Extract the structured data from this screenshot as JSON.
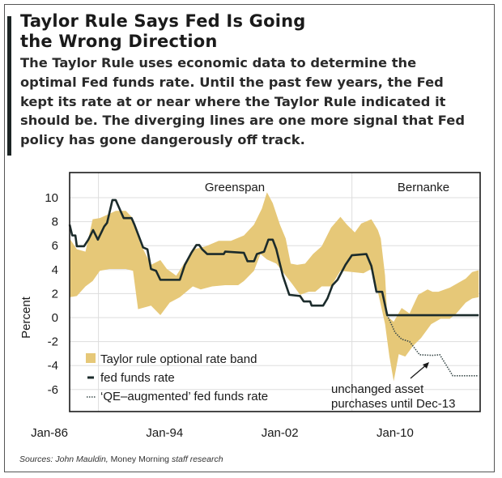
{
  "header": {
    "title_lines": [
      "Taylor Rule Says Fed Is Going",
      "the Wrong Direction"
    ],
    "description_lines": [
      "The Taylor Rule uses economic data to determine the",
      "optimal Fed funds rate. Until the past few years,  the Fed",
      "kept its rate at or near where the Taylor Rule indicated it",
      "should be. The diverging lines are one more signal that Fed",
      "policy has gone dangerously off track."
    ]
  },
  "sources": {
    "prefix": "Sources: John Mauldin,",
    "middle": " Money Morning ",
    "suffix": "staff research"
  },
  "chart_data": {
    "type": "area",
    "title": "",
    "xlabel": "",
    "ylabel": "Percent",
    "ylim": [
      -6.5,
      11.8
    ],
    "xlim": [
      1986,
      2014.5
    ],
    "yticks": [
      10,
      8,
      6,
      4,
      2,
      0,
      -2,
      -4,
      -6
    ],
    "xticks": [
      {
        "label": "Jan-86",
        "year": 1986
      },
      {
        "label": "Jan-94",
        "year": 1994
      },
      {
        "label": "Jan-02",
        "year": 2002
      },
      {
        "label": "Jan-10",
        "year": 2010
      }
    ],
    "grid": true,
    "era_labels": [
      {
        "label": "Greenspan"
      },
      {
        "label": "Bernanke"
      }
    ],
    "annotation": {
      "lines": [
        "unchanged asset",
        "purchases until Dec-13"
      ]
    },
    "legend_position": "bottom-left",
    "colors": {
      "band": "#e6c878",
      "fed": "#1b2b2b",
      "qe": "#3a4a4a",
      "grid": "#dddddd"
    },
    "series": [
      {
        "name": "Taylor rule optional rate band",
        "kind": "band",
        "upper": [
          [
            1986.0,
            6.6
          ],
          [
            1986.5,
            5.7
          ],
          [
            1987.1,
            5.5
          ],
          [
            1987.6,
            8.2
          ],
          [
            1988.1,
            8.3
          ],
          [
            1988.75,
            8.65
          ],
          [
            1989.2,
            8.9
          ],
          [
            1989.9,
            8.9
          ],
          [
            1990.3,
            8.4
          ],
          [
            1990.9,
            6.2
          ],
          [
            1991.65,
            4.4
          ],
          [
            1992.3,
            4.8
          ],
          [
            1992.75,
            4.05
          ],
          [
            1993.4,
            3.5
          ],
          [
            1994.0,
            4.6
          ],
          [
            1994.65,
            5.7
          ],
          [
            1995.45,
            5.95
          ],
          [
            1996.35,
            6.4
          ],
          [
            1997.2,
            6.4
          ],
          [
            1998.1,
            6.85
          ],
          [
            1998.8,
            7.75
          ],
          [
            1999.35,
            9.1
          ],
          [
            1999.7,
            10.45
          ],
          [
            2000.1,
            9.55
          ],
          [
            2000.6,
            7.75
          ],
          [
            2001.0,
            6.6
          ],
          [
            2001.35,
            4.5
          ],
          [
            2001.8,
            4.4
          ],
          [
            2002.35,
            4.5
          ],
          [
            2002.9,
            5.3
          ],
          [
            2003.5,
            5.95
          ],
          [
            2004.15,
            7.5
          ],
          [
            2004.8,
            8.4
          ],
          [
            2005.25,
            7.75
          ],
          [
            2005.8,
            7.1
          ],
          [
            2006.25,
            7.85
          ],
          [
            2006.95,
            8.2
          ],
          [
            2007.4,
            7.3
          ],
          [
            2007.6,
            6.6
          ],
          [
            2007.9,
            3.5
          ],
          [
            2008.05,
            0.1
          ],
          [
            2008.5,
            -0.35
          ],
          [
            2009.05,
            0.8
          ],
          [
            2009.6,
            0.35
          ],
          [
            2010.2,
            1.9
          ],
          [
            2010.85,
            2.35
          ],
          [
            2011.2,
            2.15
          ],
          [
            2011.6,
            2.15
          ],
          [
            2012.4,
            2.5
          ],
          [
            2013.5,
            3.25
          ],
          [
            2013.95,
            3.8
          ],
          [
            2014.4,
            3.95
          ]
        ],
        "lower": [
          [
            1986.0,
            1.7
          ],
          [
            1986.5,
            1.8
          ],
          [
            1987.1,
            2.6
          ],
          [
            1987.6,
            3.05
          ],
          [
            1988.1,
            3.9
          ],
          [
            1988.75,
            4.05
          ],
          [
            1989.9,
            4.05
          ],
          [
            1990.4,
            3.9
          ],
          [
            1990.75,
            0.7
          ],
          [
            1991.65,
            1.0
          ],
          [
            1992.3,
            0.2
          ],
          [
            1992.95,
            1.25
          ],
          [
            1993.65,
            1.7
          ],
          [
            1994.55,
            2.6
          ],
          [
            1995.1,
            2.35
          ],
          [
            1995.9,
            2.6
          ],
          [
            1996.8,
            2.7
          ],
          [
            1997.7,
            2.7
          ],
          [
            1998.1,
            3.05
          ],
          [
            1998.8,
            3.9
          ],
          [
            1999.25,
            5.3
          ],
          [
            1999.7,
            4.85
          ],
          [
            2000.35,
            4.5
          ],
          [
            2001.0,
            3.5
          ],
          [
            2001.45,
            2.8
          ],
          [
            2002.0,
            1.9
          ],
          [
            2002.6,
            2.15
          ],
          [
            2003.05,
            2.15
          ],
          [
            2003.5,
            2.6
          ],
          [
            2004.15,
            2.6
          ],
          [
            2004.8,
            3.9
          ],
          [
            2005.6,
            3.8
          ],
          [
            2006.4,
            3.7
          ],
          [
            2006.95,
            4.05
          ],
          [
            2007.4,
            2.15
          ],
          [
            2007.9,
            -0.55
          ],
          [
            2008.2,
            -3.25
          ],
          [
            2008.5,
            -5.3
          ],
          [
            2008.85,
            -3.05
          ],
          [
            2009.3,
            -3.25
          ],
          [
            2009.85,
            -2.35
          ],
          [
            2010.4,
            -1.7
          ],
          [
            2011.1,
            -0.55
          ],
          [
            2011.75,
            -0.1
          ],
          [
            2012.4,
            -0.1
          ],
          [
            2012.85,
            0.35
          ],
          [
            2013.5,
            1.25
          ],
          [
            2013.95,
            1.6
          ],
          [
            2014.4,
            1.7
          ]
        ]
      },
      {
        "name": "fed funds rate",
        "kind": "line",
        "points": [
          [
            1986.0,
            7.75
          ],
          [
            1986.18,
            6.85
          ],
          [
            1986.4,
            6.85
          ],
          [
            1986.5,
            5.95
          ],
          [
            1987.0,
            5.95
          ],
          [
            1987.3,
            6.5
          ],
          [
            1987.63,
            7.3
          ],
          [
            1987.96,
            6.5
          ],
          [
            1988.4,
            7.6
          ],
          [
            1988.6,
            7.9
          ],
          [
            1988.97,
            9.8
          ],
          [
            1989.2,
            9.8
          ],
          [
            1989.75,
            8.3
          ],
          [
            1990.3,
            8.3
          ],
          [
            1990.5,
            7.75
          ],
          [
            1991.1,
            5.85
          ],
          [
            1991.4,
            5.7
          ],
          [
            1991.65,
            4.05
          ],
          [
            1992.0,
            3.9
          ],
          [
            1992.3,
            3.15
          ],
          [
            1993.65,
            3.15
          ],
          [
            1994.0,
            4.4
          ],
          [
            1994.45,
            5.4
          ],
          [
            1994.8,
            6.05
          ],
          [
            1995.0,
            6.05
          ],
          [
            1995.2,
            5.7
          ],
          [
            1995.55,
            5.3
          ],
          [
            1996.7,
            5.3
          ],
          [
            1996.8,
            5.5
          ],
          [
            1998.1,
            5.4
          ],
          [
            1998.35,
            4.7
          ],
          [
            1998.8,
            4.7
          ],
          [
            1999.0,
            5.3
          ],
          [
            1999.5,
            5.5
          ],
          [
            1999.8,
            6.5
          ],
          [
            2000.1,
            6.5
          ],
          [
            2000.35,
            5.7
          ],
          [
            2000.8,
            3.5
          ],
          [
            2001.25,
            1.9
          ],
          [
            2002.0,
            1.8
          ],
          [
            2002.25,
            1.35
          ],
          [
            2002.7,
            1.35
          ],
          [
            2002.8,
            1.0
          ],
          [
            2003.6,
            1.0
          ],
          [
            2003.9,
            1.6
          ],
          [
            2004.25,
            2.7
          ],
          [
            2004.6,
            3.15
          ],
          [
            2005.15,
            4.4
          ],
          [
            2005.6,
            5.2
          ],
          [
            2006.6,
            5.3
          ],
          [
            2006.95,
            4.3
          ],
          [
            2007.3,
            2.15
          ],
          [
            2007.7,
            2.15
          ],
          [
            2008.05,
            0.2
          ],
          [
            2014.4,
            0.2
          ]
        ]
      },
      {
        "name": "‘QE–augmented’ fed funds rate",
        "kind": "dotted",
        "points": [
          [
            2008.05,
            0.2
          ],
          [
            2008.6,
            -1.25
          ],
          [
            2009.05,
            -1.8
          ],
          [
            2009.6,
            -2.0
          ],
          [
            2010.3,
            -3.1
          ],
          [
            2011.2,
            -3.15
          ],
          [
            2011.7,
            -3.1
          ],
          [
            2012.6,
            -4.85
          ],
          [
            2014.4,
            -4.85
          ]
        ]
      }
    ]
  }
}
